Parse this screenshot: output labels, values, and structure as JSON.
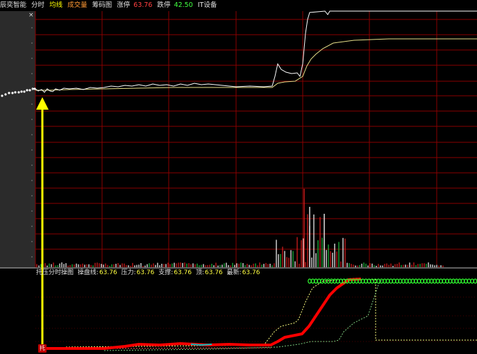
{
  "topbar": {
    "stock_name": "辰奕智能",
    "tabs": [
      "分时",
      "均线",
      "成交量",
      "筹码图"
    ],
    "limit_up_label": "涨停",
    "limit_up_value": "63.76",
    "limit_down_label": "跌停",
    "limit_down_value": "42.50",
    "sector": "IT设备"
  },
  "indicator": {
    "name": "托压分时操图",
    "items": [
      {
        "label": "操盘线:",
        "value": "63.76"
      },
      {
        "label": "压力:",
        "value": "63.76"
      },
      {
        "label": "支撑:",
        "value": "63.76"
      },
      {
        "label": "顶:",
        "value": "63.76"
      },
      {
        "label": "最新:",
        "value": "63.76"
      }
    ],
    "badge": "托"
  },
  "close_glyph": "×",
  "colors": {
    "price_line": "#ffffff",
    "avg_line": "#e8e08a",
    "grid": "#8a0000",
    "up_volume": "#e02020",
    "down_volume": "#20c040",
    "arrow": "#ffff00",
    "upper_band": "#ffff80",
    "lower_band": "#60c060",
    "thick_line": "#ff0000"
  }
}
